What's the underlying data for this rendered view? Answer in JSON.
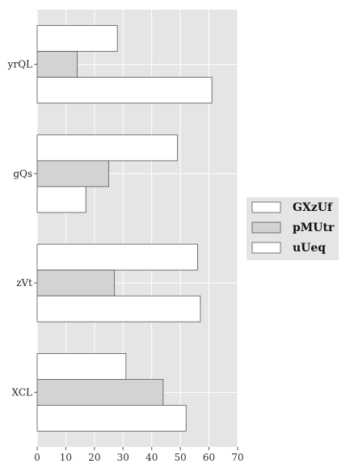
{
  "chart_data": {
    "type": "bar",
    "orientation": "horizontal",
    "categories": [
      "yrQL",
      "gQs",
      "zVt",
      "XCL"
    ],
    "series": [
      {
        "name": "GXzUf",
        "values": [
          28,
          49,
          56,
          31
        ],
        "color": "#ffffff"
      },
      {
        "name": "pMUtr",
        "values": [
          14,
          25,
          27,
          44
        ],
        "color": "#d3d3d3"
      },
      {
        "name": "uUeq",
        "values": [
          61,
          17,
          57,
          52
        ],
        "color": "#ffffff"
      }
    ],
    "xlim": [
      0,
      70
    ],
    "xticks": [
      0,
      10,
      20,
      30,
      40,
      50,
      60,
      70
    ],
    "grid": true,
    "legend_position": "right",
    "background": "#e5e5e5",
    "bar_edge": "#555555"
  }
}
